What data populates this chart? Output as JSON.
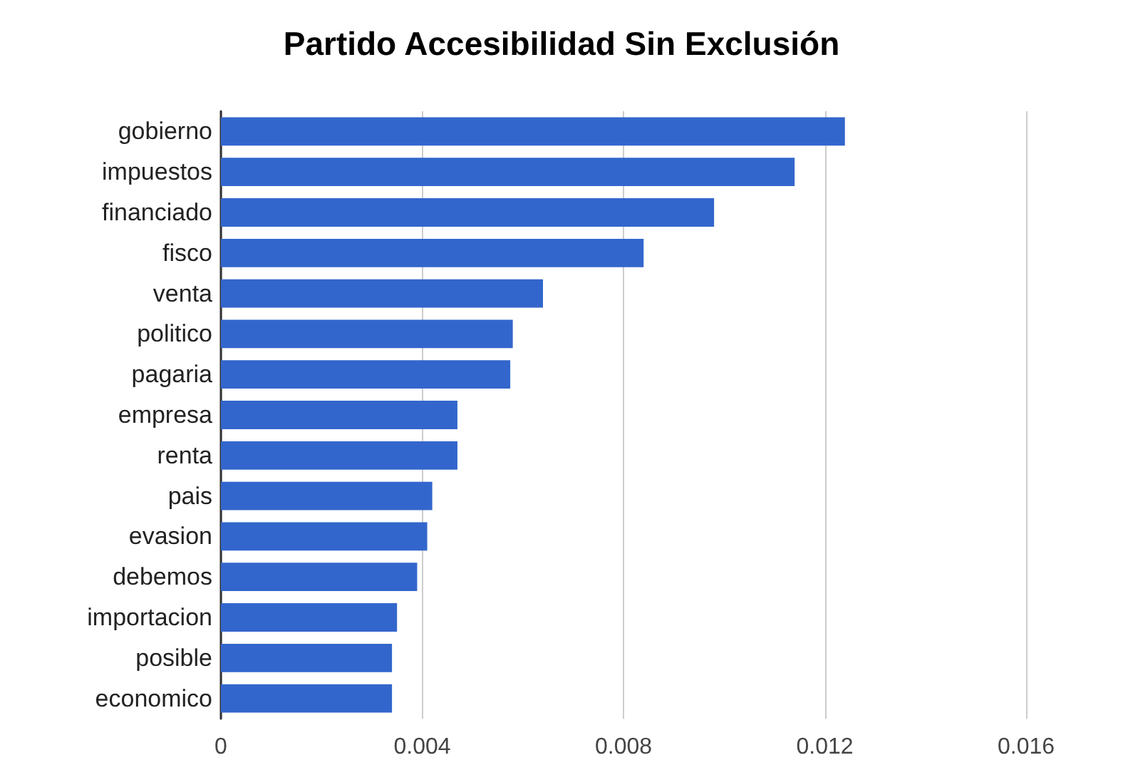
{
  "chart_data": {
    "type": "bar",
    "title": "Partido Accesibilidad Sin Exclusión",
    "orientation": "horizontal",
    "categories": [
      "gobierno",
      "impuestos",
      "financiado",
      "fisco",
      "venta",
      "politico",
      "pagaria",
      "empresa",
      "renta",
      "pais",
      "evasion",
      "debemos",
      "importacion",
      "posible",
      "economico"
    ],
    "series": [
      {
        "color": "#3366cc",
        "values": [
          0.0124,
          0.0114,
          0.0098,
          0.0084,
          0.0064,
          0.0058,
          0.00575,
          0.0047,
          0.0047,
          0.0042,
          0.0041,
          0.0039,
          0.0035,
          0.0034,
          0.0034
        ]
      }
    ],
    "xlim": [
      0,
      0.016
    ],
    "xticks": [
      0,
      0.004,
      0.008,
      0.012,
      0.016
    ],
    "grid": "x"
  }
}
